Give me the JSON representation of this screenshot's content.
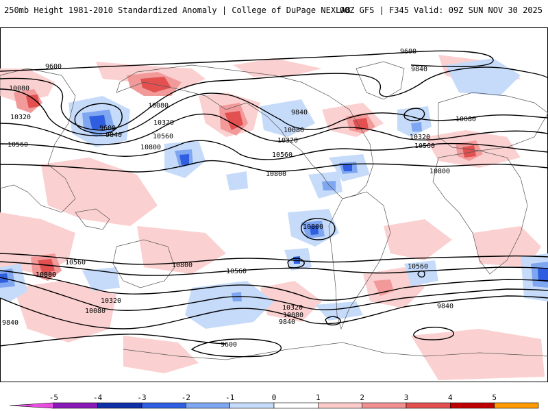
{
  "header": {
    "title_left": "250mb Height 1981-2010 Standardized Anomaly | College of DuPage NEXLAB",
    "title_right": "00Z GFS | F345 Valid: 09Z SUN NOV 30 2025"
  },
  "contour_labels": {
    "c9600_a": "9600",
    "c9600_b": "9600",
    "c9600_c": "9600",
    "c9600_d": "9600",
    "c9840_a": "9840",
    "c9840_b": "9840",
    "c9840_c": "9840",
    "c9840_d": "9840",
    "c9840_e": "9840",
    "c9840_f": "9840",
    "c10080_a": "10080",
    "c10080_b": "10080",
    "c10080_c": "10080",
    "c10080_d": "10080",
    "c10080_e": "10080",
    "c10080_f": "10080",
    "c10080_g": "10080",
    "c10320_a": "10320",
    "c10320_b": "10320",
    "c10320_c": "10320",
    "c10320_d": "10320",
    "c10320_e": "10320",
    "c10320_f": "10320",
    "c10560_a": "10560",
    "c10560_b": "10560",
    "c10560_c": "10560",
    "c10560_d": "10560",
    "c10560_e": "10560",
    "c10560_f": "10560",
    "c10560_g": "10560",
    "c10800_a": "10800",
    "c10800_b": "10800",
    "c10800_c": "10800",
    "c10800_d": "10800",
    "c10800_e": "10800",
    "c10800_f": "10800"
  },
  "legend": {
    "ticks": [
      -5,
      -4,
      -3,
      -2,
      -1,
      0,
      1,
      2,
      3,
      4,
      5
    ],
    "colors": [
      "#e84fe0",
      "#8a1ab8",
      "#1030a8",
      "#2f5fe0",
      "#7fa6f0",
      "#c6dbfa",
      "#ffffff",
      "#fbcaca",
      "#f09090",
      "#e25050",
      "#c00000",
      "#ff9a00",
      "#ffc020"
    ]
  },
  "colors": {
    "neg1": "#c6dbfa",
    "neg2": "#7fa6f0",
    "neg3": "#2f5fe0",
    "neg4": "#1030a8",
    "pos1": "#fbd0d0",
    "pos2": "#f29a9a",
    "pos3": "#e25050",
    "contour": "#000000",
    "coast": "#555555"
  }
}
